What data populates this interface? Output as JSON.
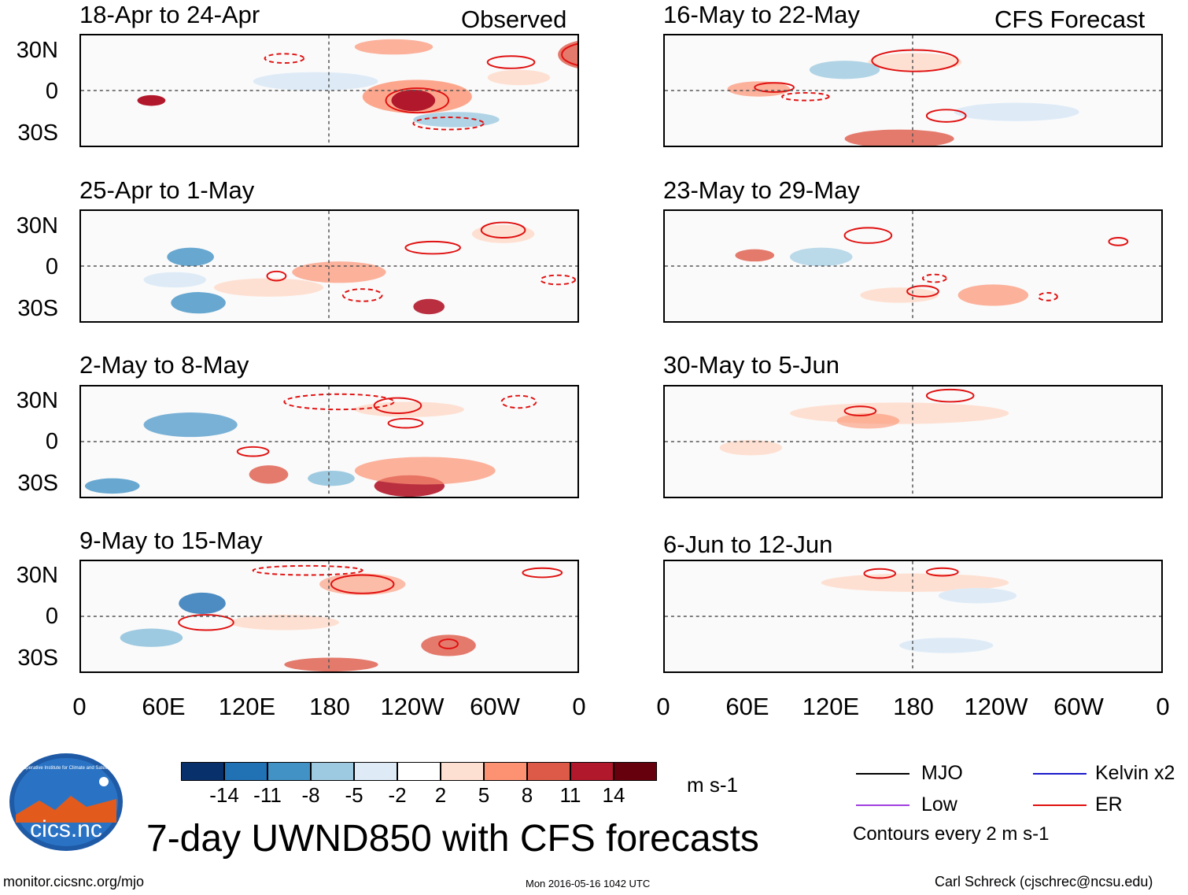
{
  "headers": {
    "observed": "Observed",
    "forecast": "CFS Forecast"
  },
  "observed_panels": [
    {
      "period": "18-Apr to 24-Apr"
    },
    {
      "period": "25-Apr to 1-May"
    },
    {
      "period": "2-May to 8-May"
    },
    {
      "period": "9-May to 15-May"
    }
  ],
  "forecast_panels": [
    {
      "period": "16-May to 22-May"
    },
    {
      "period": "23-May to 29-May"
    },
    {
      "period": "30-May to 5-Jun"
    },
    {
      "period": "6-Jun to 12-Jun"
    }
  ],
  "lat_labels": [
    "30N",
    "0",
    "30S"
  ],
  "lon_labels": [
    "0",
    "60E",
    "120E",
    "180",
    "120W",
    "60W",
    "0"
  ],
  "colorbar": {
    "colors": [
      "#08306b",
      "#2171b5",
      "#4292c6",
      "#9ecae1",
      "#deebf7",
      "#ffffff",
      "#fee0d2",
      "#fc9272",
      "#de5a48",
      "#b2182b",
      "#67000d"
    ],
    "ticks": [
      "-14",
      "-11",
      "-8",
      "-5",
      "-2",
      "2",
      "5",
      "8",
      "11",
      "14"
    ],
    "units": "m s-1"
  },
  "legend": {
    "items": [
      {
        "label": "MJO",
        "color": "#000000"
      },
      {
        "label": "Kelvin x2",
        "color": "#1a1acc"
      },
      {
        "label": "Low",
        "color": "#a040e0"
      },
      {
        "label": "ER",
        "color": "#e01010"
      }
    ],
    "note": "Contours every 2 m s-1"
  },
  "logo": {
    "text": "cics.nc",
    "arc_text": "Cooperative Institute for Climate and Satellites"
  },
  "main_title": "7-day UWND850 with CFS forecasts",
  "footer": {
    "url": "monitor.cicsnc.org/mjo",
    "timestamp": "Mon 2016-05-16 1042 UTC",
    "author": "Carl Schreck (cjschrec@ncsu.edu)"
  }
}
